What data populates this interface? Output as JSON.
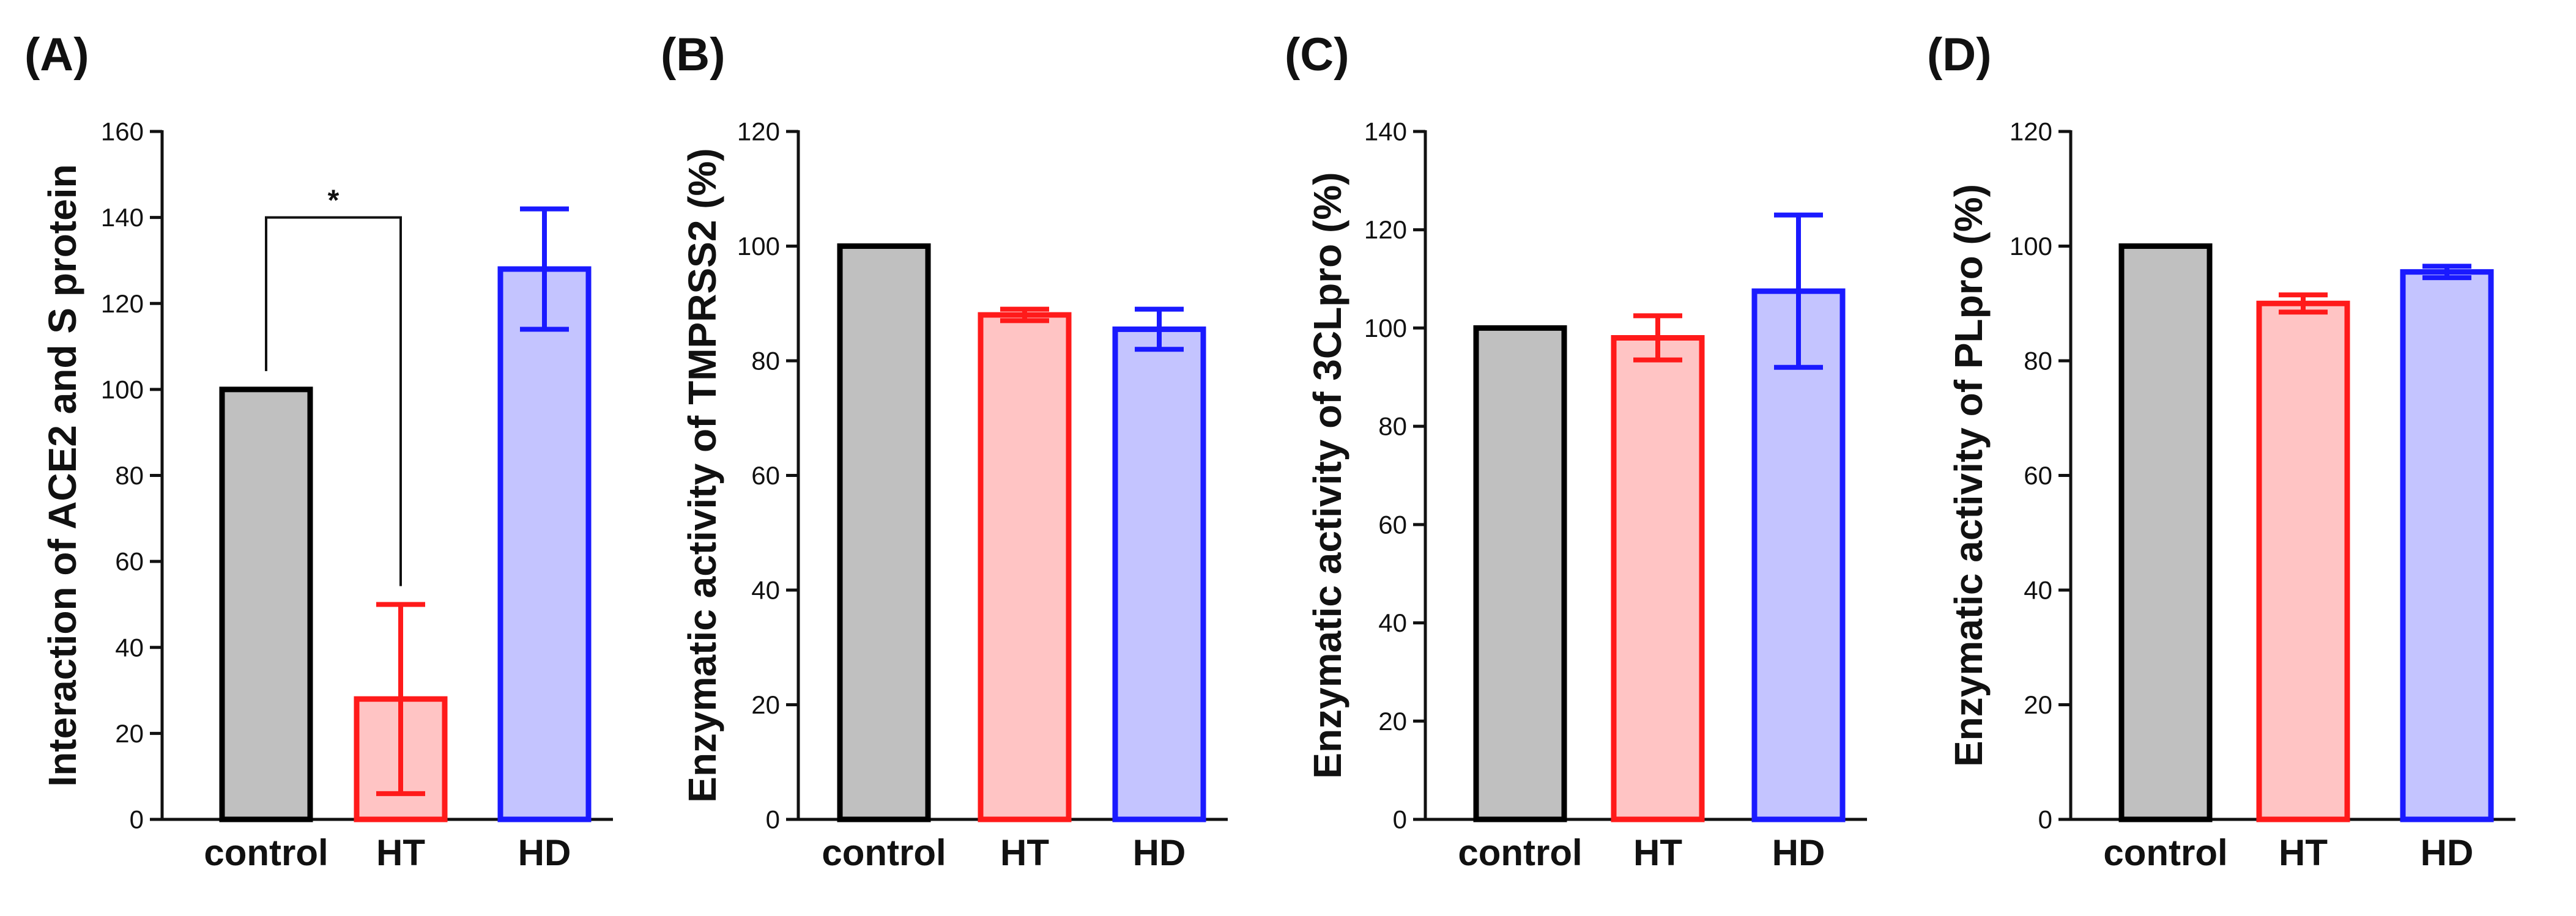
{
  "figure": {
    "colors": {
      "control": {
        "edge": "#000000",
        "fill": "#c0c0c0"
      },
      "HT": {
        "edge": "#ff1a1a",
        "fill": "#ffc4c4"
      },
      "HD": {
        "edge": "#1a1aff",
        "fill": "#c4c4ff"
      }
    }
  },
  "chart_data": [
    {
      "type": "bar",
      "panel_label": "(A)",
      "categories": [
        "control",
        "HT",
        "HD"
      ],
      "values": [
        100,
        28,
        128
      ],
      "errors": [
        0,
        22,
        14
      ],
      "ylabel": "Interaction of ACE2 and S protein",
      "xlabel": "",
      "ylim": [
        0,
        160
      ],
      "yticks": [
        "0",
        "20",
        "40",
        "60",
        "80",
        "100",
        "120",
        "140",
        "160"
      ],
      "significance": {
        "from": "control",
        "to": "HT",
        "label": "*"
      }
    },
    {
      "type": "bar",
      "panel_label": "(B)",
      "categories": [
        "control",
        "HT",
        "HD"
      ],
      "values": [
        100,
        88,
        85.5
      ],
      "errors": [
        0,
        1,
        3.5
      ],
      "ylabel": "Enzymatic activity of TMPRSS2 (%)",
      "xlabel": "",
      "ylim": [
        0,
        120
      ],
      "yticks": [
        "0",
        "20",
        "40",
        "60",
        "80",
        "100",
        "120"
      ]
    },
    {
      "type": "bar",
      "panel_label": "(C)",
      "categories": [
        "control",
        "HT",
        "HD"
      ],
      "values": [
        100,
        98,
        107.5
      ],
      "errors": [
        0,
        4.5,
        15.5
      ],
      "ylabel": "Enzymatic activity of 3CLpro (%)",
      "xlabel": "",
      "ylim": [
        0,
        140
      ],
      "yticks": [
        "0",
        "20",
        "40",
        "60",
        "80",
        "100",
        "120",
        "140"
      ]
    },
    {
      "type": "bar",
      "panel_label": "(D)",
      "categories": [
        "control",
        "HT",
        "HD"
      ],
      "values": [
        100,
        90,
        95.5
      ],
      "errors": [
        0,
        1.5,
        1
      ],
      "ylabel": "Enzymatic activity of PLpro (%)",
      "xlabel": "",
      "ylim": [
        0,
        120
      ],
      "yticks": [
        "0",
        "20",
        "40",
        "60",
        "80",
        "100",
        "120"
      ]
    }
  ]
}
